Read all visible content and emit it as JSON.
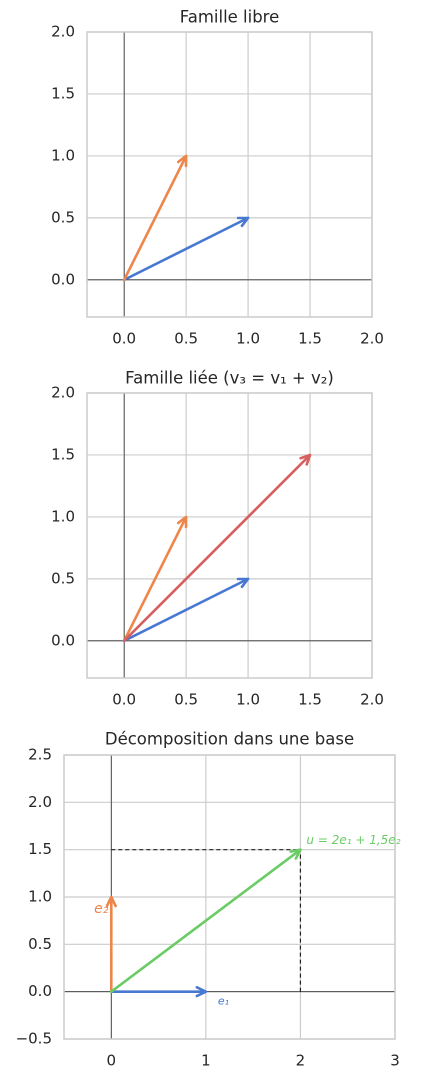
{
  "chart_data": [
    {
      "type": "vector",
      "title": "Famille libre",
      "xlim": [
        -0.3,
        2.0
      ],
      "ylim": [
        -0.3,
        2.0
      ],
      "xticks": [
        {
          "value": 0,
          "label": "0.0"
        },
        0.5,
        {
          "value": 1,
          "label": "1.0"
        },
        1.5,
        {
          "value": 2,
          "label": "2.0"
        }
      ],
      "yticks": [
        {
          "value": 0,
          "label": "0.0"
        },
        0.5,
        {
          "value": 1,
          "label": "1.0"
        },
        1.5,
        {
          "value": 2,
          "label": "2.0"
        }
      ],
      "grid": true,
      "vectors": [
        {
          "x": 1,
          "y": 0.5,
          "color": "#4878d0"
        },
        {
          "x": 0.5,
          "y": 1,
          "color": "#ee854a"
        }
      ]
    },
    {
      "type": "vector",
      "title": "Famille liée (v₃ = v₁ + v₂)",
      "xlim": [
        -0.3,
        2.0
      ],
      "ylim": [
        -0.3,
        2.0
      ],
      "xticks": [
        {
          "value": 0,
          "label": "0.0"
        },
        0.5,
        {
          "value": 1,
          "label": "1.0"
        },
        1.5,
        {
          "value": 2,
          "label": "2.0"
        }
      ],
      "yticks": [
        {
          "value": 0,
          "label": "0.0"
        },
        0.5,
        {
          "value": 1,
          "label": "1.0"
        },
        1.5,
        {
          "value": 2,
          "label": "2.0"
        }
      ],
      "grid": true,
      "vectors": [
        {
          "x": 1,
          "y": 0.5,
          "color": "#4878d0"
        },
        {
          "x": 0.5,
          "y": 1,
          "color": "#ee854a"
        },
        {
          "x": 1.5,
          "y": 1.5,
          "color": "#d65f5f"
        }
      ]
    },
    {
      "type": "vector",
      "title": "Décomposition dans une base",
      "xlim": [
        -0.5,
        3
      ],
      "ylim": [
        -0.5,
        2.5
      ],
      "xticks": [
        0,
        1,
        2,
        3
      ],
      "yticks": [
        {
          "value": -0.5,
          "label": "−0.5"
        },
        {
          "value": 0,
          "label": "0.0"
        },
        0.5,
        {
          "value": 1,
          "label": "1.0"
        },
        1.5,
        {
          "value": 2,
          "label": "2.0"
        },
        2.5
      ],
      "grid": true,
      "projection_lines": true,
      "vectors": [
        {
          "x": 1,
          "y": 0,
          "color": "#4878d0",
          "label": "e₁"
        },
        {
          "x": 0,
          "y": 1,
          "color": "#ee854a",
          "label": "e₂"
        },
        {
          "x": 2,
          "y": 1.5,
          "color": "#6acc64",
          "label": "u = 2e₁ + 1,5e₂"
        }
      ]
    }
  ]
}
